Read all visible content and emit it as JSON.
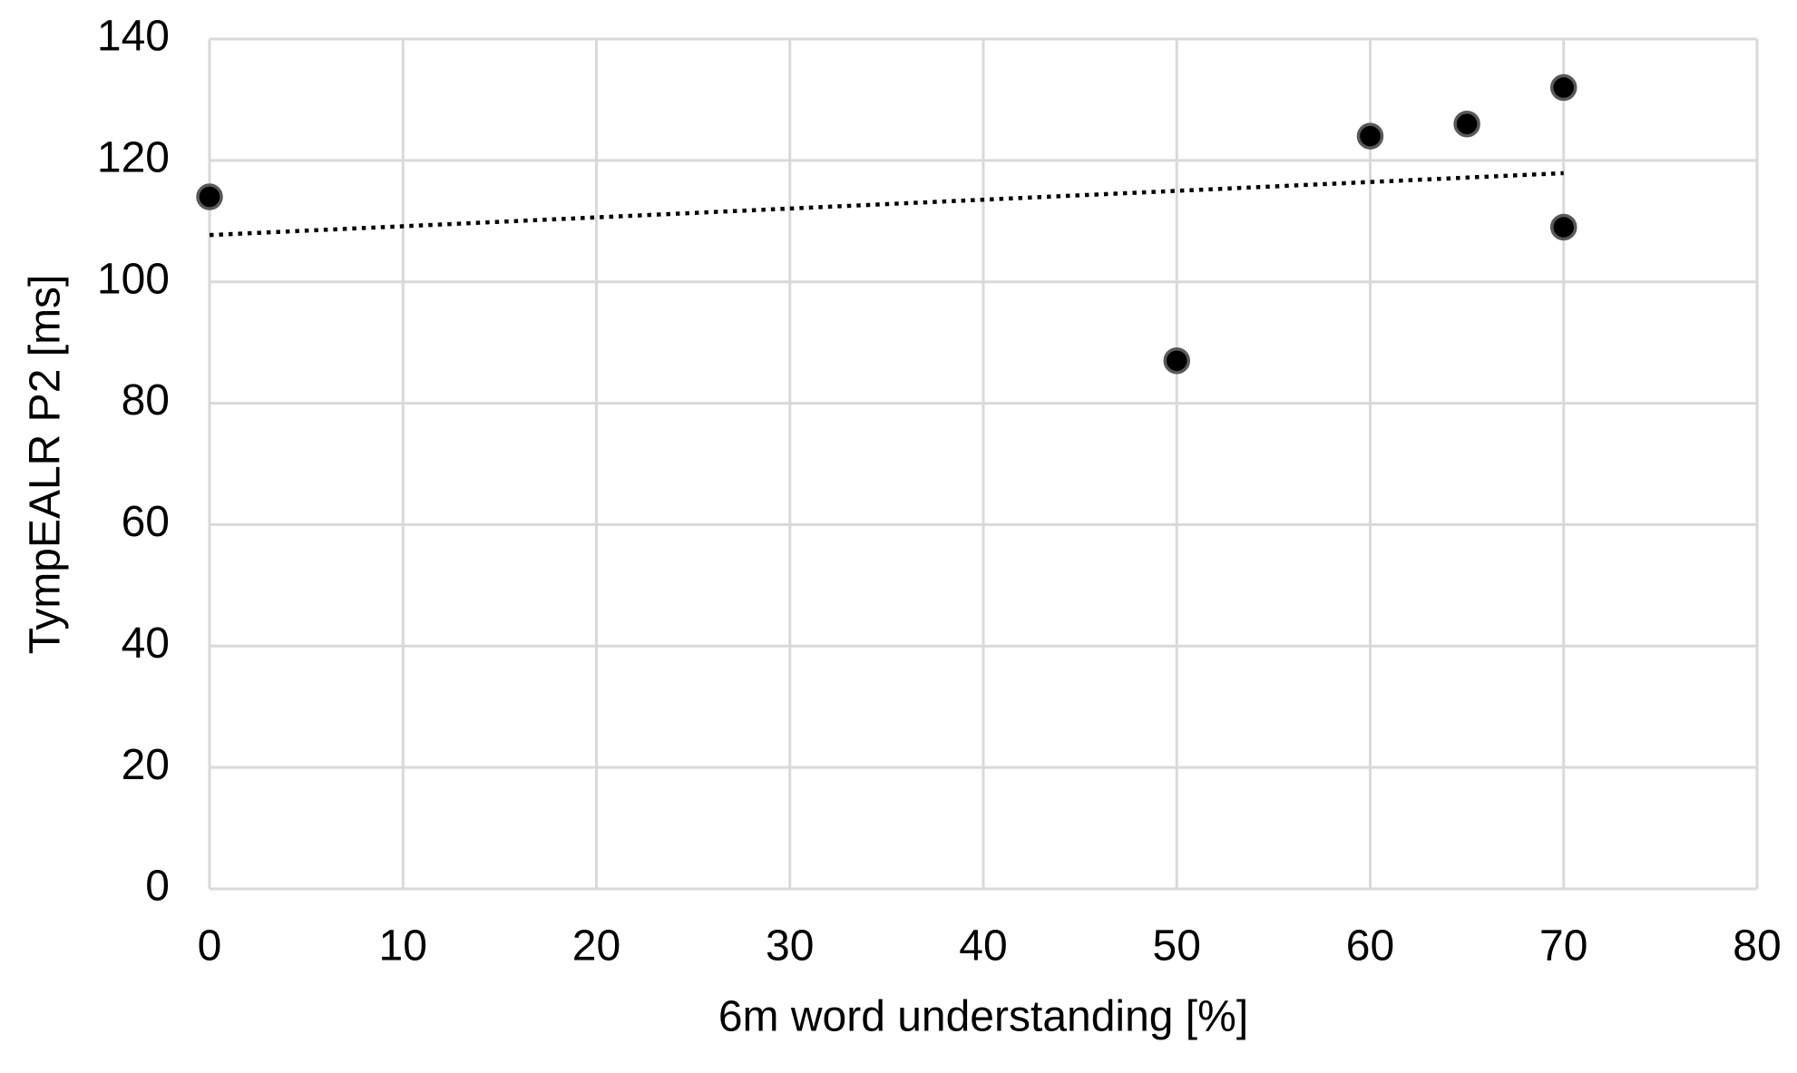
{
  "chart_data": {
    "type": "scatter",
    "x_label": "6m word understanding [%]",
    "y_label": "TympEALR P2 [ms]",
    "series": [
      {
        "x": [
          0,
          50,
          60,
          65,
          70,
          70
        ],
        "values": [
          114,
          87,
          124,
          126,
          132,
          109
        ],
        "color": "#000000"
      }
    ],
    "trendline": {
      "x": [
        0,
        70
      ],
      "values": [
        107.7,
        117.9
      ],
      "color": "#000000"
    },
    "xlim": [
      0,
      80
    ],
    "xticks": [
      0,
      10,
      20,
      30,
      40,
      50,
      60,
      70,
      80
    ],
    "ylim": [
      0,
      140
    ],
    "yticks": [
      0,
      20,
      40,
      60,
      80,
      100,
      120,
      140
    ],
    "grid": true
  }
}
